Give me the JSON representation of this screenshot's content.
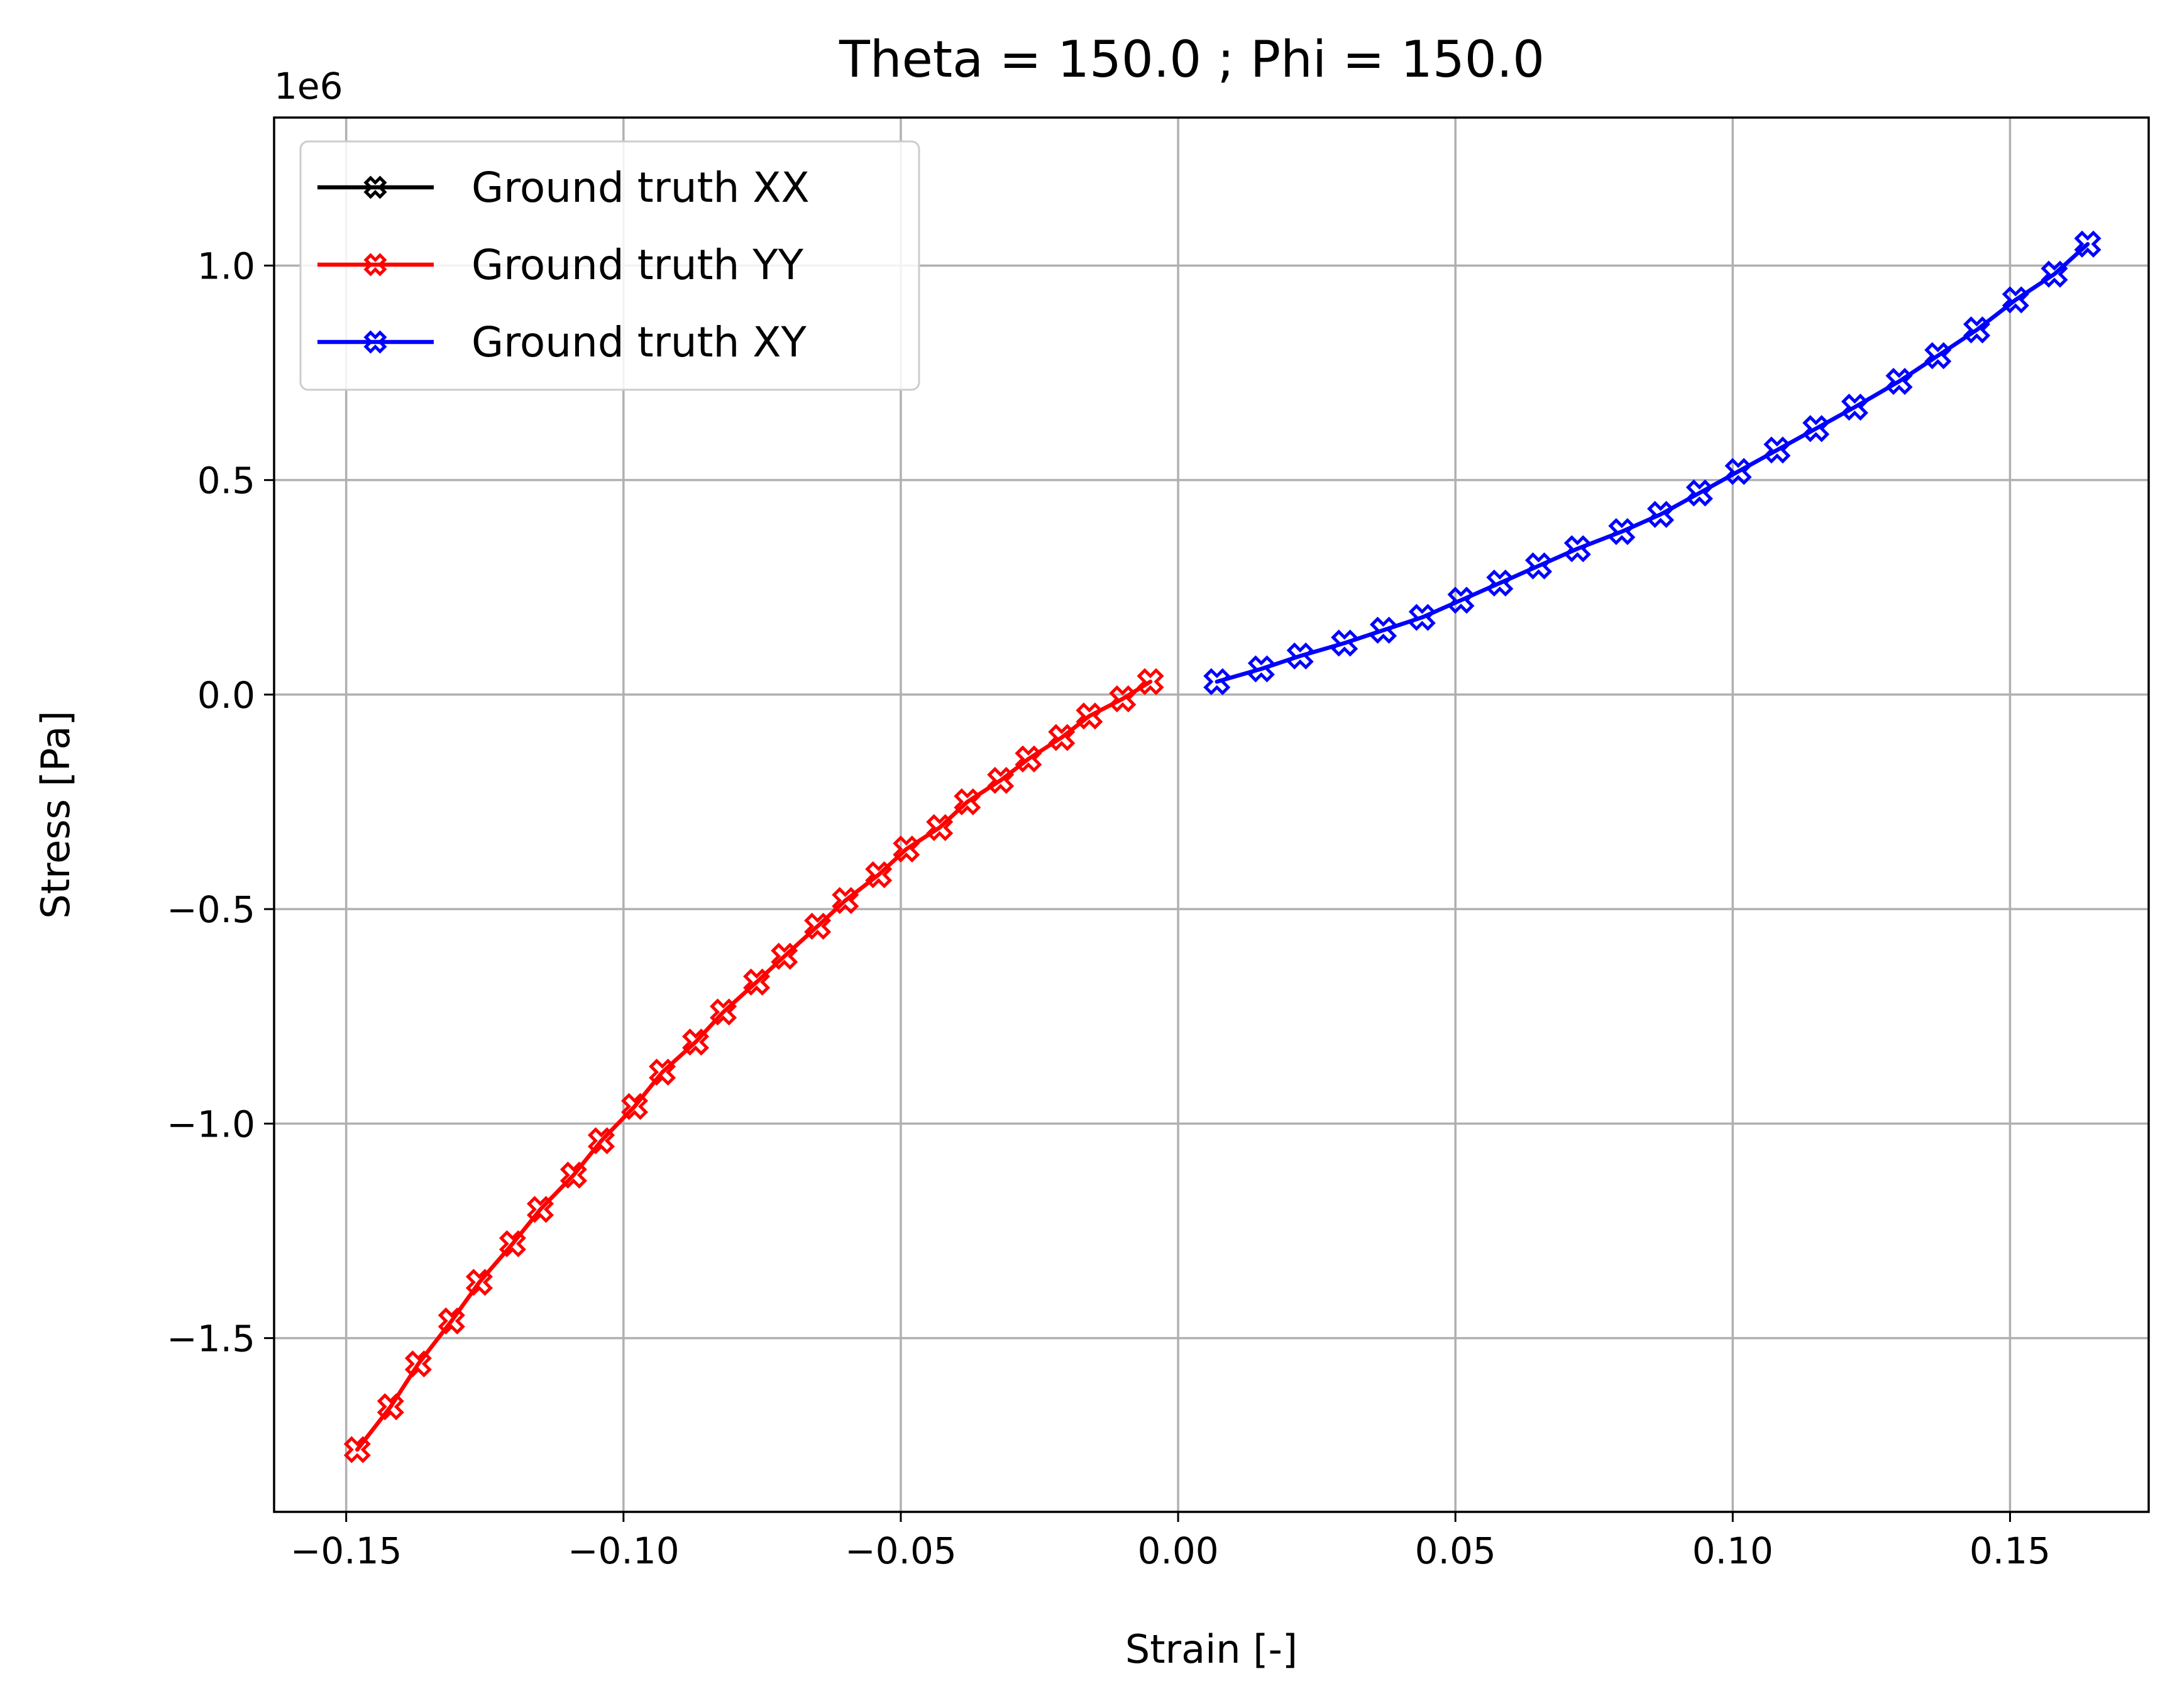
{
  "chart_data": {
    "type": "line",
    "title": "Theta = 150.0 ; Phi = 150.0",
    "xlabel": "Strain [-]",
    "ylabel": "Stress [Pa]",
    "y_offset_label": "1e6",
    "y_scale_factor": 1000000,
    "xlim": [
      -0.163,
      0.175
    ],
    "ylim": [
      -1.905,
      1.345
    ],
    "x_ticks": [
      -0.15,
      -0.1,
      -0.05,
      0.0,
      0.05,
      0.1,
      0.15
    ],
    "x_tick_labels": [
      "−0.15",
      "−0.10",
      "−0.05",
      "0.00",
      "0.05",
      "0.10",
      "0.15"
    ],
    "y_ticks": [
      -1.5,
      -1.0,
      -0.5,
      0.0,
      0.5,
      1.0
    ],
    "y_tick_labels": [
      "−1.5",
      "−1.0",
      "−0.5",
      "0.0",
      "0.5",
      "1.0"
    ],
    "grid": true,
    "legend_position": "top-left",
    "marker": "X (hollow)",
    "series": [
      {
        "name": "Ground truth XX",
        "color": "#000000",
        "x": [],
        "y": []
      },
      {
        "name": "Ground truth YY",
        "color": "#ff0000",
        "x": [
          -0.148,
          -0.142,
          -0.137,
          -0.131,
          -0.126,
          -0.12,
          -0.115,
          -0.109,
          -0.104,
          -0.098,
          -0.093,
          -0.087,
          -0.082,
          -0.076,
          -0.071,
          -0.065,
          -0.06,
          -0.054,
          -0.049,
          -0.043,
          -0.038,
          -0.032,
          -0.027,
          -0.021,
          -0.016,
          -0.01,
          -0.005
        ],
        "y": [
          -1.76,
          -1.66,
          -1.56,
          -1.46,
          -1.37,
          -1.28,
          -1.2,
          -1.12,
          -1.04,
          -0.96,
          -0.88,
          -0.81,
          -0.74,
          -0.67,
          -0.61,
          -0.54,
          -0.48,
          -0.42,
          -0.36,
          -0.31,
          -0.25,
          -0.2,
          -0.15,
          -0.1,
          -0.05,
          -0.01,
          0.03
        ]
      },
      {
        "name": "Ground truth XY",
        "color": "#0000ff",
        "x": [
          0.007,
          0.015,
          0.022,
          0.03,
          0.037,
          0.044,
          0.051,
          0.058,
          0.065,
          0.072,
          0.08,
          0.087,
          0.094,
          0.101,
          0.108,
          0.115,
          0.122,
          0.13,
          0.137,
          0.144,
          0.151,
          0.158,
          0.164
        ],
        "y": [
          0.03,
          0.06,
          0.09,
          0.12,
          0.15,
          0.18,
          0.22,
          0.26,
          0.3,
          0.34,
          0.38,
          0.42,
          0.47,
          0.52,
          0.57,
          0.62,
          0.67,
          0.73,
          0.79,
          0.85,
          0.92,
          0.98,
          1.05
        ]
      }
    ]
  }
}
